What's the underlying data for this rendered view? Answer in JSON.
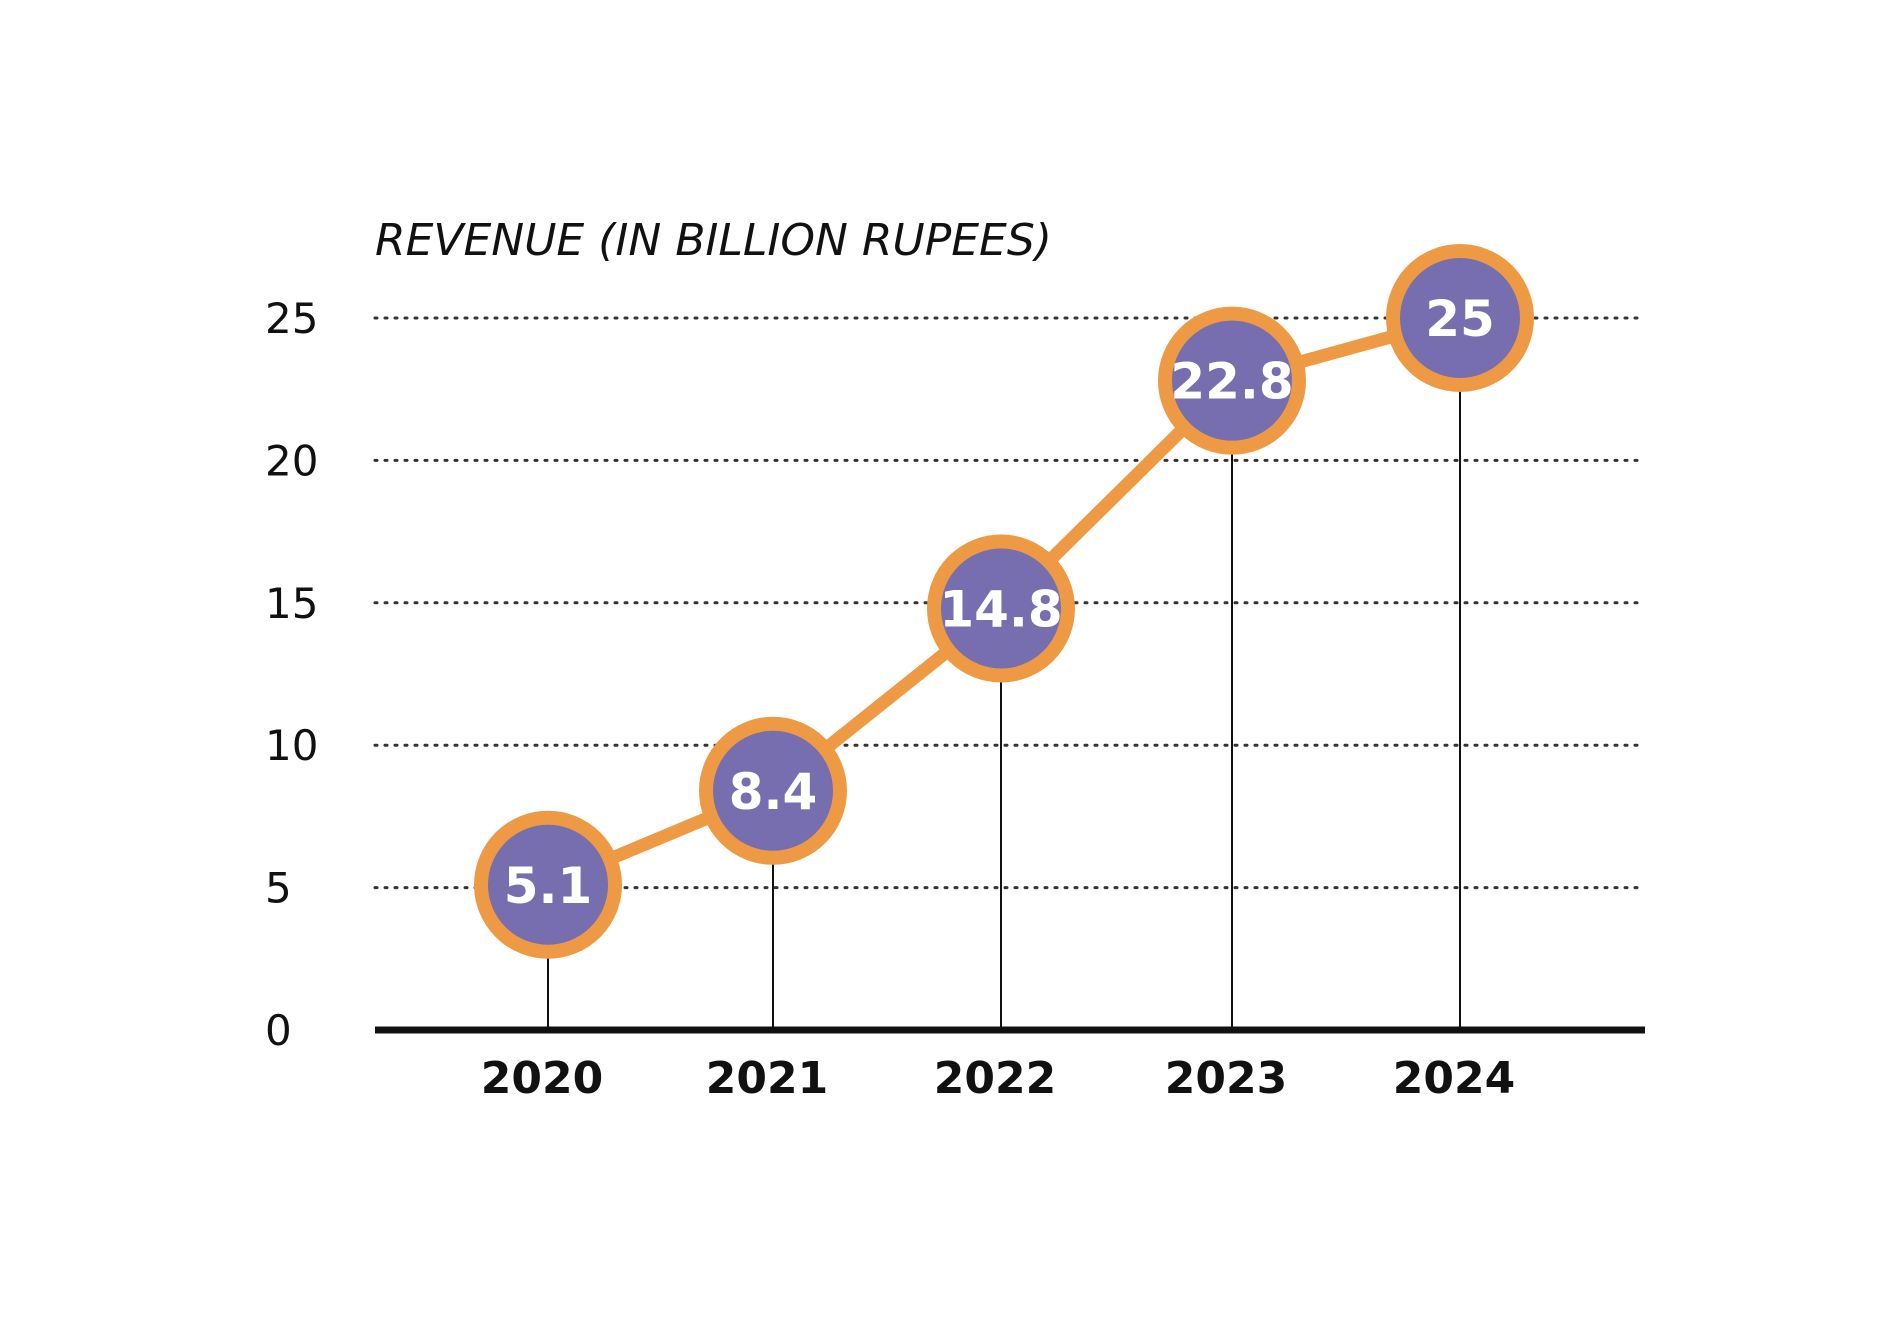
{
  "colors": {
    "line": "#EE9A45",
    "marker_fill": "#766EAF",
    "marker_text": "#FFFFFF",
    "axis": "#111111",
    "grid": "#333333"
  },
  "chart_data": {
    "type": "line",
    "title": "REVENUE (IN BILLION RUPEES)",
    "xlabel": "",
    "ylabel": "REVENUE (IN BILLION RUPEES)",
    "categories": [
      "2020",
      "2021",
      "2022",
      "2023",
      "2024"
    ],
    "values": [
      5.1,
      8.4,
      14.8,
      22.8,
      25
    ],
    "value_labels": [
      "5.1",
      "8.4",
      "14.8",
      "22.8",
      "25"
    ],
    "ylim": [
      0,
      25
    ],
    "yticks": [
      "0",
      "5",
      "10",
      "15",
      "20",
      "25"
    ],
    "grid": "dotted horizontal",
    "legend": "none"
  }
}
